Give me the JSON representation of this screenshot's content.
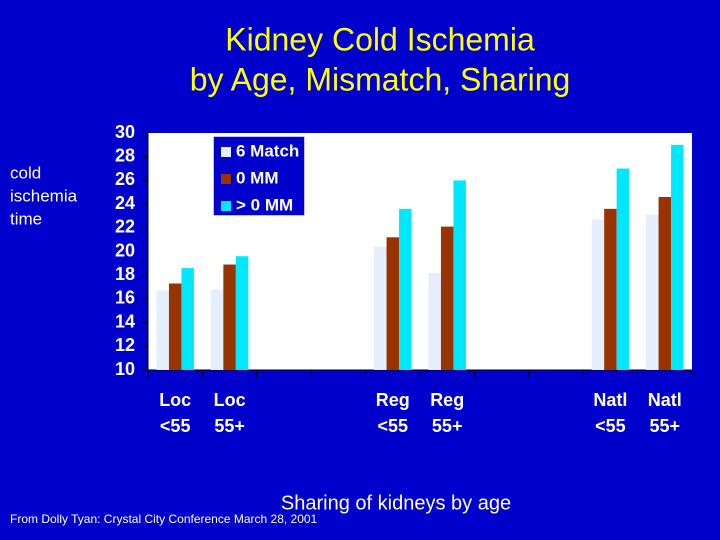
{
  "chart_data": {
    "type": "bar",
    "title": [
      "Kidney Cold Ischemia",
      "by Age, Mismatch, Sharing"
    ],
    "y_label": [
      "cold",
      "ischemia",
      "time"
    ],
    "x_label": "Sharing of kidneys by age",
    "categories": [
      [
        "Loc",
        "<55"
      ],
      [
        "Loc",
        "55+"
      ],
      null,
      null,
      [
        "Reg",
        "<55"
      ],
      [
        "Reg",
        "55+"
      ],
      null,
      null,
      [
        "Natl",
        "<55"
      ],
      [
        "Natl",
        "55+"
      ]
    ],
    "series": [
      {
        "name": "6 Match",
        "color": "#e4eefc",
        "values": [
          16.7,
          16.8,
          null,
          null,
          20.4,
          18.2,
          null,
          null,
          22.7,
          23.1
        ]
      },
      {
        "name": "0 MM",
        "color": "#993300",
        "values": [
          17.3,
          18.9,
          null,
          null,
          21.2,
          22.1,
          null,
          null,
          23.6,
          24.6
        ]
      },
      {
        "name": "> 0 MM",
        "color": "#00e8ff",
        "values": [
          18.6,
          19.6,
          null,
          null,
          23.6,
          26.0,
          null,
          null,
          27.0,
          29.0
        ]
      }
    ],
    "ylim": [
      10,
      30
    ],
    "yticks": [
      10,
      12,
      14,
      16,
      18,
      20,
      22,
      24,
      26,
      28,
      30
    ],
    "legend": "top-left"
  },
  "source": "From Dolly Tyan: Crystal City Conference March 28, 2001"
}
